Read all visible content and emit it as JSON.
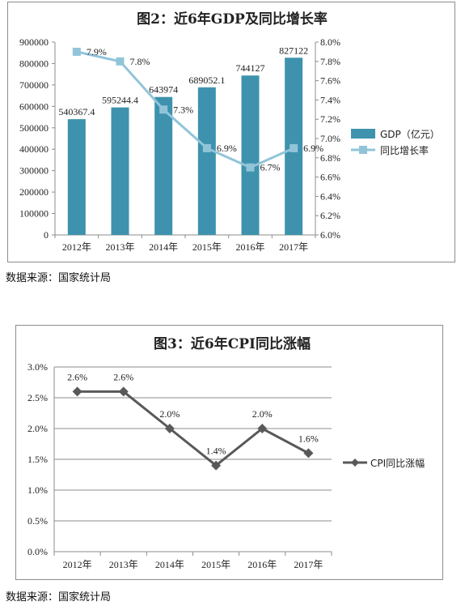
{
  "chart_data": [
    {
      "type": "bar+line",
      "title": "图2：近6年GDP及同比增长率",
      "categories": [
        "2012年",
        "2013年",
        "2014年",
        "2015年",
        "2016年",
        "2017年"
      ],
      "series": [
        {
          "name": "GDP（亿元）",
          "type": "bar",
          "axis": "left",
          "color": "#3e92ad",
          "values": [
            540367.4,
            595244.4,
            643974,
            689052.1,
            744127,
            827122
          ],
          "labels": [
            "540367.4",
            "595244.4",
            "643974",
            "689052.1",
            "744127",
            "827122"
          ]
        },
        {
          "name": "同比增长率",
          "type": "line",
          "axis": "right",
          "color": "#92c4d9",
          "values": [
            7.9,
            7.8,
            7.3,
            6.9,
            6.7,
            6.9
          ],
          "labels": [
            "7.9%",
            "7.8%",
            "7.3%",
            "6.9%",
            "6.7%",
            "6.9%"
          ]
        }
      ],
      "y_left": {
        "ylim": [
          0,
          900000
        ],
        "ticks": [
          "0",
          "100000",
          "200000",
          "300000",
          "400000",
          "500000",
          "600000",
          "700000",
          "800000",
          "900000"
        ]
      },
      "y_right": {
        "ylim": [
          6.0,
          8.0
        ],
        "ticks": [
          "6.0%",
          "6.2%",
          "6.4%",
          "6.6%",
          "6.8%",
          "7.0%",
          "7.2%",
          "7.4%",
          "7.6%",
          "7.8%",
          "8.0%"
        ]
      },
      "legend": "right",
      "grid": false
    },
    {
      "type": "line",
      "title": "图3：近6年CPI同比涨幅",
      "categories": [
        "2012年",
        "2013年",
        "2014年",
        "2015年",
        "2016年",
        "2017年"
      ],
      "series": [
        {
          "name": "CPI同比涨幅",
          "color": "#595959",
          "values": [
            2.6,
            2.6,
            2.0,
            1.4,
            2.0,
            1.6
          ],
          "labels": [
            "2.6%",
            "2.6%",
            "2.0%",
            "1.4%",
            "2.0%",
            "1.6%"
          ]
        }
      ],
      "y": {
        "ylim": [
          0.0,
          3.0
        ],
        "ticks": [
          "0.0%",
          "0.5%",
          "1.0%",
          "1.5%",
          "2.0%",
          "2.5%",
          "3.0%"
        ]
      },
      "legend": "right",
      "grid": true
    }
  ],
  "sources": [
    "数据来源：国家统计局",
    "数据来源：国家统计局"
  ]
}
